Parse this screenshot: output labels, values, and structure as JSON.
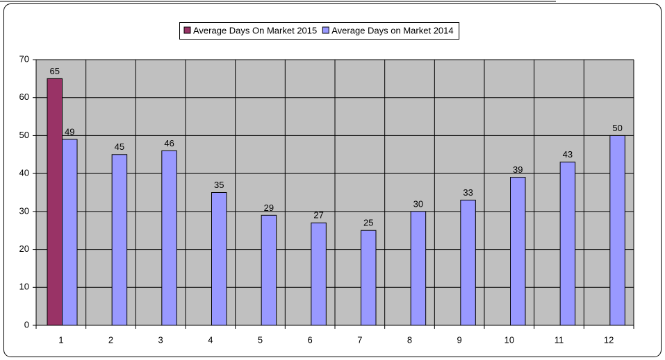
{
  "chart_data": {
    "type": "bar",
    "categories": [
      1,
      2,
      3,
      4,
      5,
      6,
      7,
      8,
      9,
      10,
      11,
      12
    ],
    "series": [
      {
        "name": "Average Days On Market 2015",
        "color": "#993366",
        "values": [
          65,
          null,
          null,
          null,
          null,
          null,
          null,
          null,
          null,
          null,
          null,
          null
        ]
      },
      {
        "name": "Average Days on Market 2014",
        "color": "#9999ff",
        "values": [
          49,
          45,
          46,
          35,
          29,
          27,
          25,
          30,
          33,
          39,
          43,
          50
        ]
      }
    ],
    "ylim": [
      0,
      70
    ],
    "yticks": [
      0,
      10,
      20,
      30,
      40,
      50,
      60,
      70
    ],
    "grid": true,
    "legend": "top"
  }
}
